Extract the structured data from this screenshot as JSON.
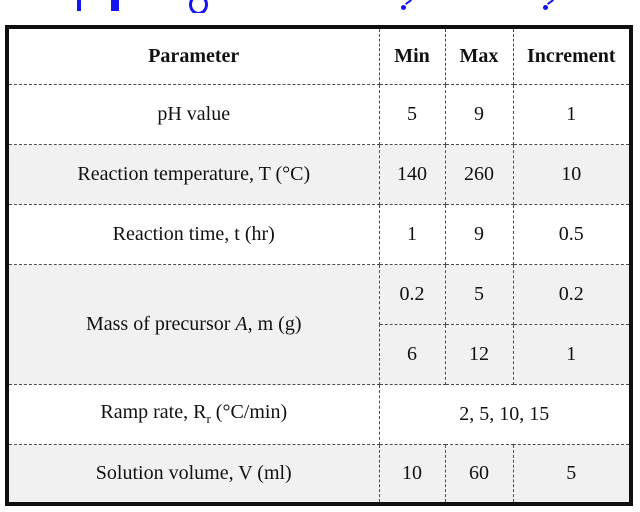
{
  "colors": {
    "caption_blue": "#1414f0",
    "shaded_row": "#f1f1f1",
    "outer_border": "#0f0f0f",
    "divider": "#4d4d4d",
    "text": "#111111"
  },
  "caption": {
    "visible_text": "",
    "note_fragments": "only descender tips of a blue caption line are visible (cropped)"
  },
  "table": {
    "columns": [
      "Parameter",
      "Min",
      "Max",
      "Increment"
    ],
    "rows": [
      {
        "parameter": "pH value",
        "min": "5",
        "max": "9",
        "increment": "1"
      },
      {
        "parameter": "Reaction temperature, T (°C)",
        "min": "140",
        "max": "260",
        "increment": "10"
      },
      {
        "parameter": "Reaction time, t (hr)",
        "min": "1",
        "max": "9",
        "increment": "0.5"
      },
      {
        "parameter_parts": {
          "prefix": "Mass of precursor ",
          "emphasis": "A",
          "suffix": ", m (g)"
        },
        "sub_rows": [
          {
            "min": "0.2",
            "max": "5",
            "increment": "0.2"
          },
          {
            "min": "6",
            "max": "12",
            "increment": "1"
          }
        ]
      },
      {
        "parameter_parts": {
          "prefix": "Ramp rate, R",
          "subscript": "r",
          "suffix": " (°C/min)"
        },
        "values_merged": "2, 5, 10, 15"
      },
      {
        "parameter": "Solution volume, V (ml)",
        "min": "10",
        "max": "60",
        "increment": "5"
      }
    ]
  }
}
